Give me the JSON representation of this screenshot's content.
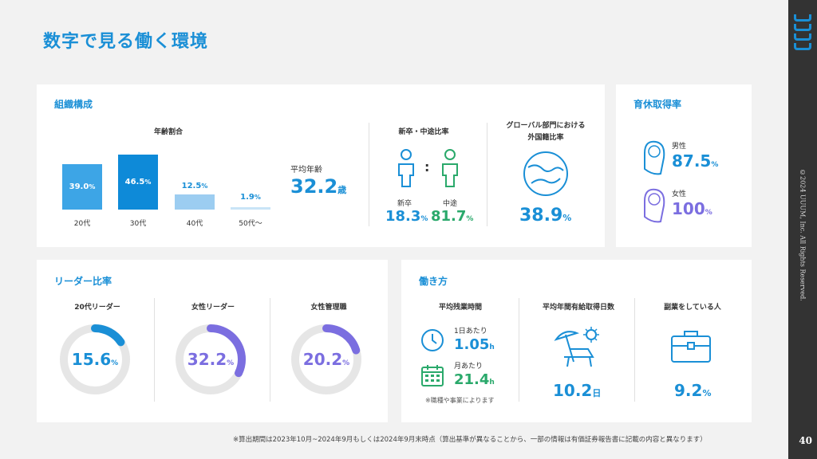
{
  "page_title": "数字で見る働く環境",
  "brand": "UUUM",
  "copyright": "©2024 UUUM, Inc. All Rights Reserved.",
  "page_number": "40",
  "footnote": "※算出期間は2023年10月~2024年9月もしくは2024年9月末時点（算出基準が異なることから、一部の情報は有価証券報告書に記載の内容と異なります）",
  "colors": {
    "primary": "#1a8fd6",
    "green": "#2aa96b",
    "purple": "#7b6ee0",
    "ring_bg": "#e6e6e6",
    "bar_20": "#3da5e6",
    "bar_30": "#0e8ad8",
    "bar_40": "#9ccdf1",
    "bar_50": "#c9e4f7"
  },
  "org": {
    "title": "組織構成",
    "age_ratio": {
      "title": "年齢割合",
      "bars": [
        {
          "label": "20代",
          "value": "39.0",
          "unit": "%"
        },
        {
          "label": "30代",
          "value": "46.5",
          "unit": "%"
        },
        {
          "label": "40代",
          "value": "12.5",
          "unit": "%"
        },
        {
          "label": "50代〜",
          "value": "1.9",
          "unit": "%"
        }
      ]
    },
    "avg_age": {
      "label": "平均年齢",
      "value": "32.2",
      "unit": "歳"
    },
    "hire_ratio": {
      "title": "新卒・中途比率",
      "colon": ":",
      "new_label": "新卒",
      "new_value": "18.3",
      "mid_label": "中途",
      "mid_value": "81.7",
      "unit": "%"
    },
    "global": {
      "title_line1": "グローバル部門における",
      "title_line2": "外国籍比率",
      "value": "38.9",
      "unit": "%"
    }
  },
  "childcare": {
    "title": "育休取得率",
    "male": {
      "label": "男性",
      "value": "87.5",
      "unit": "%"
    },
    "female": {
      "label": "女性",
      "value": "100",
      "unit": "%"
    }
  },
  "leader": {
    "title": "リーダー比率",
    "items": [
      {
        "label": "20代リーダー",
        "value": "15.6",
        "unit": "%",
        "fraction": 0.156
      },
      {
        "label": "女性リーダー",
        "value": "32.2",
        "unit": "%",
        "fraction": 0.322
      },
      {
        "label": "女性管理職",
        "value": "20.2",
        "unit": "%",
        "fraction": 0.202
      }
    ]
  },
  "work": {
    "title": "働き方",
    "overtime": {
      "title": "平均残業時間",
      "day_label": "1日あたり",
      "day_value": "1.05",
      "day_unit": "h",
      "month_label": "月あたり",
      "month_value": "21.4",
      "month_unit": "h",
      "note": "※職種や事業によります"
    },
    "leave": {
      "title": "平均年間有給取得日数",
      "value": "10.2",
      "unit": "日"
    },
    "side": {
      "title": "副業をしている人",
      "value": "9.2",
      "unit": "%"
    }
  }
}
